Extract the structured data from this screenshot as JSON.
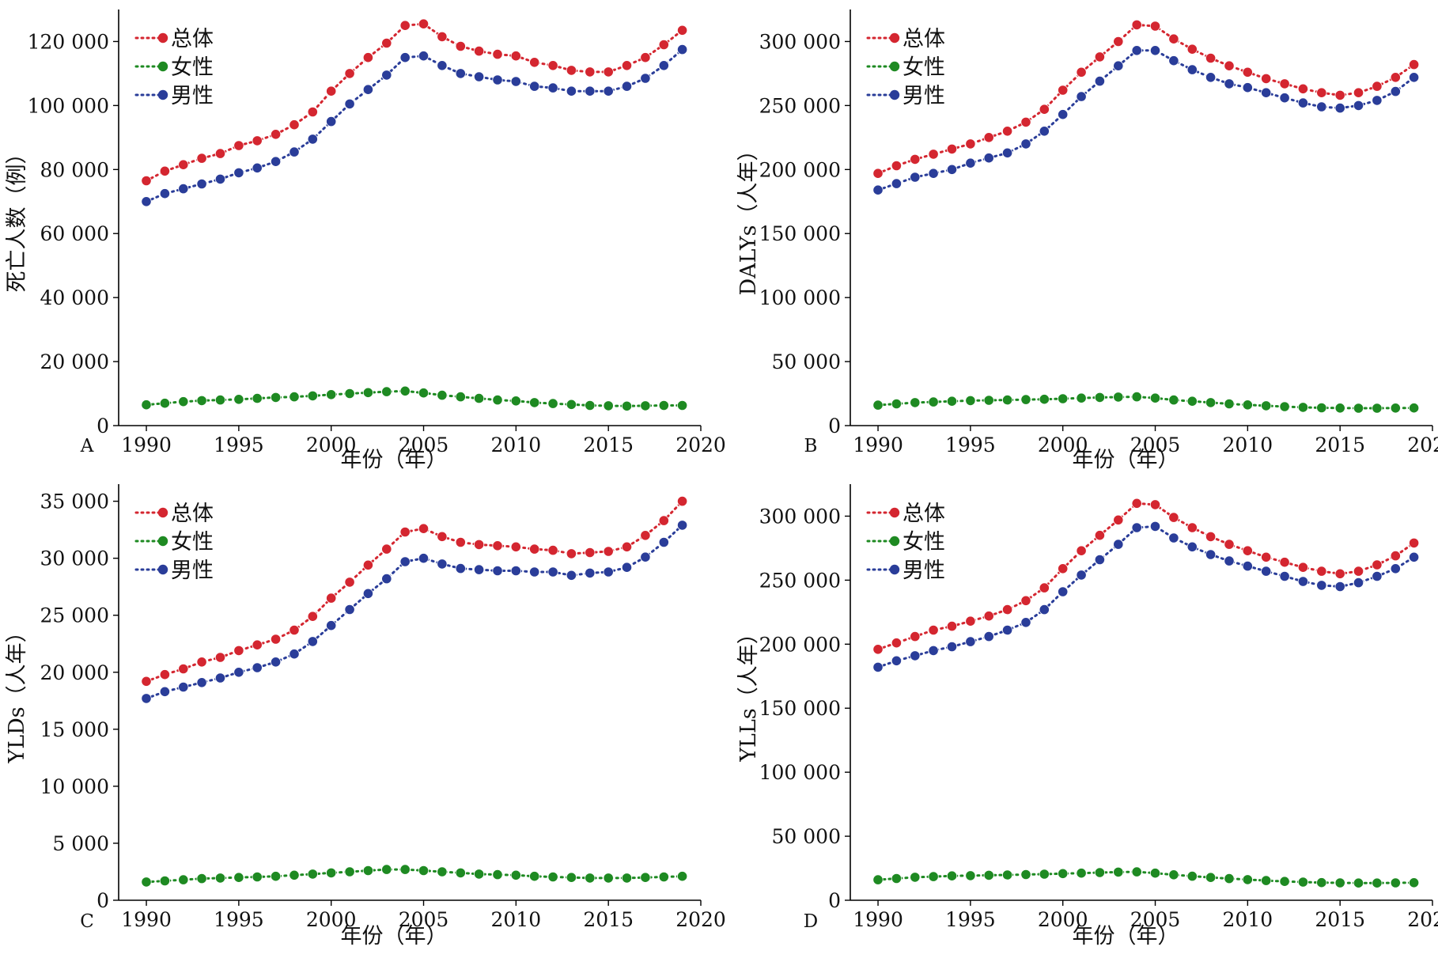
{
  "chart_data": [
    {
      "type": "line",
      "panel_label": "A",
      "xlabel": "年份（年）",
      "ylabel": "死亡人数（例）",
      "xlim": [
        1988.5,
        2020
      ],
      "ylim": [
        0,
        130000
      ],
      "xticks": [
        1990,
        1995,
        2000,
        2005,
        2010,
        2015,
        2020
      ],
      "xtick_labels": [
        "1990",
        "1995",
        "2000",
        "2005",
        "2010",
        "2015",
        "2020"
      ],
      "yticks": [
        0,
        20000,
        40000,
        60000,
        80000,
        100000,
        120000
      ],
      "ytick_labels": [
        "0",
        "20 000",
        "40 000",
        "60 000",
        "80 000",
        "100 000",
        "120 000"
      ],
      "legend_position": "top-left",
      "x": [
        1990,
        1991,
        1992,
        1993,
        1994,
        1995,
        1996,
        1997,
        1998,
        1999,
        2000,
        2001,
        2002,
        2003,
        2004,
        2005,
        2006,
        2007,
        2008,
        2009,
        2010,
        2011,
        2012,
        2013,
        2014,
        2015,
        2016,
        2017,
        2018,
        2019
      ],
      "series": [
        {
          "name": "总体",
          "color": "#d42630",
          "values": [
            76500,
            79500,
            81500,
            83500,
            85000,
            87500,
            89000,
            91000,
            94000,
            98000,
            104500,
            110000,
            115000,
            119500,
            125000,
            125500,
            121500,
            118500,
            117000,
            116000,
            115500,
            113500,
            112500,
            111000,
            110500,
            110500,
            112500,
            115000,
            119000,
            123500
          ]
        },
        {
          "name": "女性",
          "color": "#1e8a22",
          "values": [
            6500,
            7000,
            7500,
            7800,
            8000,
            8200,
            8500,
            8800,
            9000,
            9300,
            9700,
            10000,
            10300,
            10600,
            10800,
            10200,
            9500,
            9000,
            8500,
            8000,
            7700,
            7200,
            6900,
            6600,
            6300,
            6200,
            6100,
            6200,
            6300,
            6300
          ]
        },
        {
          "name": "男性",
          "color": "#2a3d99",
          "values": [
            70000,
            72500,
            74000,
            75500,
            77000,
            79000,
            80500,
            82500,
            85500,
            89500,
            95000,
            100500,
            105000,
            109500,
            115000,
            115500,
            112500,
            110000,
            109000,
            108000,
            107500,
            106000,
            105500,
            104500,
            104500,
            104500,
            106000,
            108500,
            112500,
            117500
          ]
        }
      ]
    },
    {
      "type": "line",
      "panel_label": "B",
      "xlabel": "年份（年）",
      "ylabel": "DALYs（人年）",
      "xlim": [
        1988.5,
        2020
      ],
      "ylim": [
        0,
        325000
      ],
      "xticks": [
        1990,
        1995,
        2000,
        2005,
        2010,
        2015,
        2020
      ],
      "xtick_labels": [
        "1990",
        "1995",
        "2000",
        "2005",
        "2010",
        "2015",
        "2020"
      ],
      "yticks": [
        0,
        50000,
        100000,
        150000,
        200000,
        250000,
        300000
      ],
      "ytick_labels": [
        "0",
        "50 000",
        "100 000",
        "150 000",
        "200 000",
        "250 000",
        "300 000"
      ],
      "legend_position": "top-left",
      "x": [
        1990,
        1991,
        1992,
        1993,
        1994,
        1995,
        1996,
        1997,
        1998,
        1999,
        2000,
        2001,
        2002,
        2003,
        2004,
        2005,
        2006,
        2007,
        2008,
        2009,
        2010,
        2011,
        2012,
        2013,
        2014,
        2015,
        2016,
        2017,
        2018,
        2019
      ],
      "series": [
        {
          "name": "总体",
          "color": "#d42630",
          "values": [
            197000,
            203000,
            208000,
            212000,
            216000,
            220000,
            225000,
            230000,
            237000,
            247000,
            262000,
            276000,
            288000,
            300000,
            313000,
            312000,
            302000,
            294000,
            287000,
            281000,
            276000,
            271000,
            267000,
            263000,
            260000,
            258000,
            260000,
            265000,
            272000,
            282000
          ]
        },
        {
          "name": "女性",
          "color": "#1e8a22",
          "values": [
            16000,
            17000,
            18000,
            18500,
            19000,
            19500,
            19800,
            20000,
            20300,
            20600,
            21000,
            21500,
            22000,
            22300,
            22500,
            21500,
            20000,
            19000,
            18000,
            17000,
            16200,
            15500,
            14800,
            14300,
            13900,
            13700,
            13600,
            13600,
            13700,
            13800
          ]
        },
        {
          "name": "男性",
          "color": "#2a3d99",
          "values": [
            184000,
            189000,
            194000,
            197000,
            200000,
            205000,
            209000,
            213000,
            220000,
            230000,
            243000,
            257000,
            269000,
            281000,
            293000,
            293000,
            285000,
            278000,
            272000,
            267000,
            264000,
            260000,
            256000,
            252000,
            249000,
            248000,
            250000,
            254000,
            261000,
            272000
          ]
        }
      ]
    },
    {
      "type": "line",
      "panel_label": "C",
      "xlabel": "年份（年）",
      "ylabel": "YLDs（人年）",
      "xlim": [
        1988.5,
        2020
      ],
      "ylim": [
        0,
        36500
      ],
      "xticks": [
        1990,
        1995,
        2000,
        2005,
        2010,
        2015,
        2020
      ],
      "xtick_labels": [
        "1990",
        "1995",
        "2000",
        "2005",
        "2010",
        "2015",
        "2020"
      ],
      "yticks": [
        0,
        5000,
        10000,
        15000,
        20000,
        25000,
        30000,
        35000
      ],
      "ytick_labels": [
        "0",
        "5 000",
        "10 000",
        "15 000",
        "20 000",
        "25 000",
        "30 000",
        "35 000"
      ],
      "legend_position": "top-left",
      "x": [
        1990,
        1991,
        1992,
        1993,
        1994,
        1995,
        1996,
        1997,
        1998,
        1999,
        2000,
        2001,
        2002,
        2003,
        2004,
        2005,
        2006,
        2007,
        2008,
        2009,
        2010,
        2011,
        2012,
        2013,
        2014,
        2015,
        2016,
        2017,
        2018,
        2019
      ],
      "series": [
        {
          "name": "总体",
          "color": "#d42630",
          "values": [
            19200,
            19800,
            20300,
            20900,
            21300,
            21900,
            22400,
            22900,
            23700,
            24900,
            26500,
            27900,
            29400,
            30800,
            32300,
            32600,
            31900,
            31400,
            31200,
            31100,
            31000,
            30800,
            30700,
            30400,
            30500,
            30600,
            31000,
            32000,
            33300,
            35000
          ]
        },
        {
          "name": "女性",
          "color": "#1e8a22",
          "values": [
            1600,
            1700,
            1800,
            1900,
            1950,
            2000,
            2050,
            2100,
            2200,
            2300,
            2400,
            2500,
            2600,
            2700,
            2700,
            2600,
            2500,
            2400,
            2300,
            2250,
            2200,
            2100,
            2050,
            2000,
            1950,
            1950,
            1950,
            2000,
            2050,
            2100
          ]
        },
        {
          "name": "男性",
          "color": "#2a3d99",
          "values": [
            17700,
            18300,
            18700,
            19100,
            19500,
            20000,
            20400,
            20900,
            21600,
            22700,
            24100,
            25500,
            26900,
            28200,
            29700,
            30000,
            29500,
            29100,
            29000,
            28900,
            28900,
            28800,
            28800,
            28500,
            28700,
            28800,
            29200,
            30100,
            31400,
            32900
          ]
        }
      ]
    },
    {
      "type": "line",
      "panel_label": "D",
      "xlabel": "年份（年）",
      "ylabel": "YLLs（人年）",
      "xlim": [
        1988.5,
        2020
      ],
      "ylim": [
        0,
        325000
      ],
      "xticks": [
        1990,
        1995,
        2000,
        2005,
        2010,
        2015,
        2020
      ],
      "xtick_labels": [
        "1990",
        "1995",
        "2000",
        "2005",
        "2010",
        "2015",
        "2020"
      ],
      "yticks": [
        0,
        50000,
        100000,
        150000,
        200000,
        250000,
        300000
      ],
      "ytick_labels": [
        "0",
        "50 000",
        "100 000",
        "150 000",
        "200 000",
        "250 000",
        "300 000"
      ],
      "legend_position": "top-left",
      "x": [
        1990,
        1991,
        1992,
        1993,
        1994,
        1995,
        1996,
        1997,
        1998,
        1999,
        2000,
        2001,
        2002,
        2003,
        2004,
        2005,
        2006,
        2007,
        2008,
        2009,
        2010,
        2011,
        2012,
        2013,
        2014,
        2015,
        2016,
        2017,
        2018,
        2019
      ],
      "series": [
        {
          "name": "总体",
          "color": "#d42630",
          "values": [
            196000,
            201000,
            206000,
            211000,
            214000,
            218000,
            222000,
            227000,
            234000,
            244000,
            259000,
            273000,
            285000,
            297000,
            310000,
            309000,
            299000,
            291000,
            284000,
            278000,
            273000,
            268000,
            264000,
            260000,
            257000,
            255000,
            257000,
            262000,
            269000,
            279000
          ]
        },
        {
          "name": "女性",
          "color": "#1e8a22",
          "values": [
            16000,
            17000,
            18000,
            18500,
            19000,
            19200,
            19500,
            19800,
            20100,
            20400,
            20800,
            21200,
            21600,
            22000,
            22200,
            21200,
            19900,
            18800,
            17800,
            16900,
            16100,
            15400,
            14700,
            14200,
            13800,
            13600,
            13500,
            13500,
            13600,
            13700
          ]
        },
        {
          "name": "男性",
          "color": "#2a3d99",
          "values": [
            182000,
            187000,
            191000,
            195000,
            198000,
            202000,
            206000,
            211000,
            217000,
            227000,
            241000,
            254000,
            266000,
            278000,
            291000,
            292000,
            283000,
            276000,
            270000,
            265000,
            261000,
            257000,
            253000,
            249000,
            246000,
            245000,
            248000,
            253000,
            259000,
            268000
          ]
        }
      ]
    }
  ]
}
